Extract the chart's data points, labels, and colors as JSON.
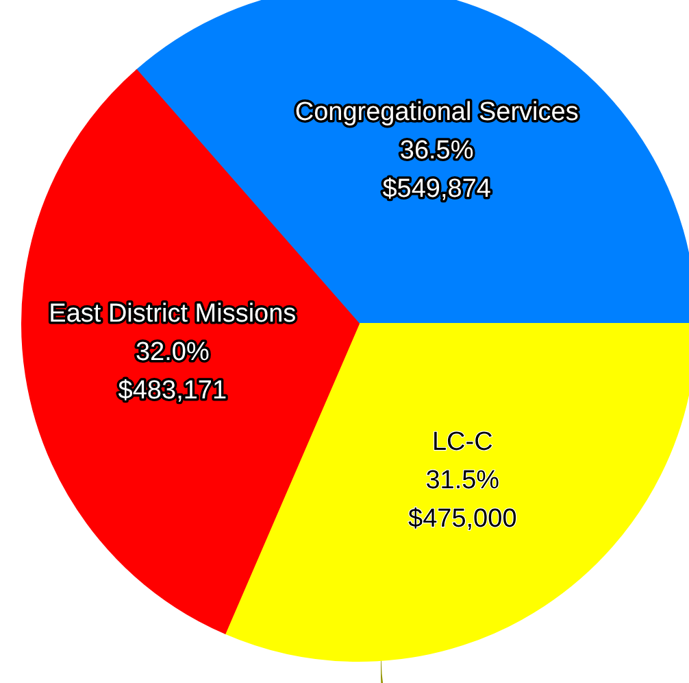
{
  "chart_data": {
    "type": "pie",
    "categories": [
      "Congregational Services",
      "LC-C",
      "East District Missions"
    ],
    "values": [
      549874,
      475000,
      483171
    ],
    "value_labels": [
      "36.5%\n$549,874",
      "31.5%\n$475,000",
      "32.0%\n$483,171"
    ],
    "colors": [
      "#0080ff",
      "#ffff00",
      "#ff0000"
    ]
  }
}
